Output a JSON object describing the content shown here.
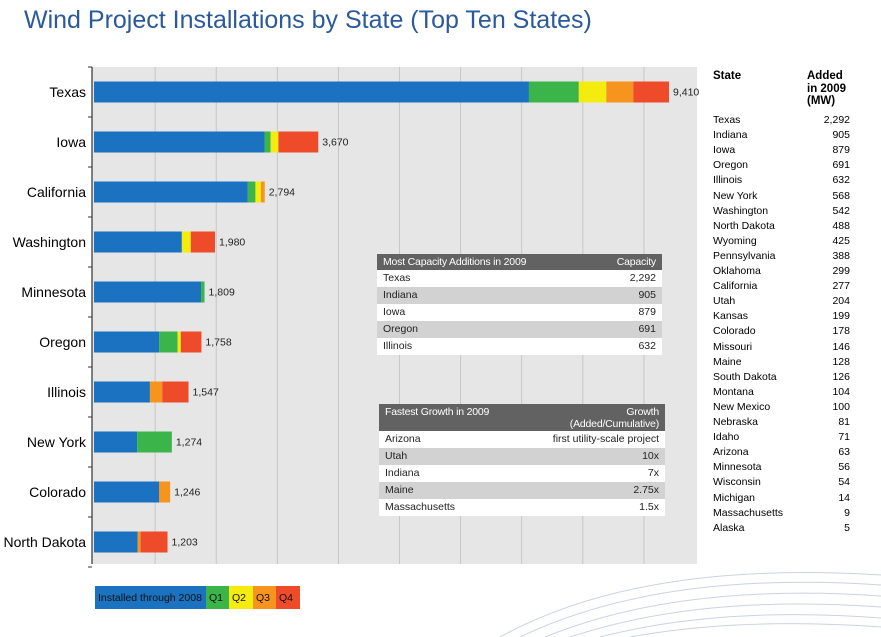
{
  "title": "Wind Project Installations by State (Top Ten States)",
  "colors": {
    "installed": "#1a72c0",
    "q1": "#3bb54a",
    "q2": "#f5ec0f",
    "q3": "#f7941e",
    "q4": "#ee4b2b",
    "title": "#2a5a9c",
    "plot_bg": "#e6e6e6"
  },
  "chart_data": {
    "type": "bar",
    "orientation": "horizontal",
    "stacked": true,
    "categories": [
      "Texas",
      "Iowa",
      "California",
      "Washington",
      "Minnesota",
      "Oregon",
      "Illinois",
      "New York",
      "Colorado",
      "North Dakota"
    ],
    "totals": [
      9410,
      3670,
      2794,
      1980,
      1809,
      1758,
      1547,
      1274,
      1246,
      1203
    ],
    "total_labels": [
      "9,410",
      "3,670",
      "2,794",
      "1,980",
      "1,809",
      "1,758",
      "1,547",
      "1,274",
      "1,246",
      "1,203"
    ],
    "series": [
      {
        "name": "Installed through 2008",
        "color_key": "installed",
        "values": [
          7118,
          2791,
          2517,
          1438,
          1752,
          1067,
          915,
          706,
          1068,
          715
        ]
      },
      {
        "name": "Q1",
        "color_key": "q1",
        "values": [
          816,
          100,
          125,
          0,
          57,
          302,
          0,
          568,
          0,
          0
        ]
      },
      {
        "name": "Q2",
        "color_key": "q2",
        "values": [
          450,
          127,
          89,
          146,
          0,
          51,
          0,
          0,
          0,
          0
        ]
      },
      {
        "name": "Q3",
        "color_key": "q3",
        "values": [
          441,
          0,
          63,
          0,
          0,
          0,
          203,
          0,
          178,
          48
        ]
      },
      {
        "name": "Q4",
        "color_key": "q4",
        "values": [
          585,
          652,
          0,
          396,
          0,
          338,
          429,
          0,
          0,
          440
        ]
      }
    ],
    "xlim": [
      0,
      10000
    ],
    "grid": true,
    "legend": "bottom-left"
  },
  "legend": {
    "installed": "Installed through 2008",
    "q1": "Q1",
    "q2": "Q2",
    "q3": "Q3",
    "q4": "Q4"
  },
  "inset_capacity": {
    "header_left": "Most Capacity Additions in 2009",
    "header_right": "Capacity",
    "rows": [
      {
        "state": "Texas",
        "value": "2,292"
      },
      {
        "state": "Indiana",
        "value": "905"
      },
      {
        "state": "Iowa",
        "value": "879"
      },
      {
        "state": "Oregon",
        "value": "691"
      },
      {
        "state": "Illinois",
        "value": "632"
      }
    ]
  },
  "inset_growth": {
    "header_left": "Fastest Growth in 2009",
    "header_right_line1": "Growth",
    "header_right_line2": "(Added/Cumulative)",
    "rows": [
      {
        "state": "Arizona",
        "value": "first utility-scale project"
      },
      {
        "state": "Utah",
        "value": "10x"
      },
      {
        "state": "Indiana",
        "value": "7x"
      },
      {
        "state": "Maine",
        "value": "2.75x"
      },
      {
        "state": "Massachusetts",
        "value": "1.5x"
      }
    ]
  },
  "state_table": {
    "header_state": "State",
    "header_added_1": "Added",
    "header_added_2": "in 2009",
    "header_added_3": "(MW)",
    "rows": [
      {
        "state": "Texas",
        "value": "2,292"
      },
      {
        "state": "Indiana",
        "value": "905"
      },
      {
        "state": "Iowa",
        "value": "879"
      },
      {
        "state": "Oregon",
        "value": "691"
      },
      {
        "state": "Illinois",
        "value": "632"
      },
      {
        "state": "New York",
        "value": "568"
      },
      {
        "state": "Washington",
        "value": "542"
      },
      {
        "state": "North Dakota",
        "value": "488"
      },
      {
        "state": "Wyoming",
        "value": "425"
      },
      {
        "state": "Pennsylvania",
        "value": "388"
      },
      {
        "state": "Oklahoma",
        "value": "299"
      },
      {
        "state": "California",
        "value": "277"
      },
      {
        "state": "Utah",
        "value": "204"
      },
      {
        "state": "Kansas",
        "value": "199"
      },
      {
        "state": "Colorado",
        "value": "178"
      },
      {
        "state": "Missouri",
        "value": "146"
      },
      {
        "state": "Maine",
        "value": "128"
      },
      {
        "state": "South Dakota",
        "value": "126"
      },
      {
        "state": "Montana",
        "value": "104"
      },
      {
        "state": "New Mexico",
        "value": "100"
      },
      {
        "state": "Nebraska",
        "value": "81"
      },
      {
        "state": "Idaho",
        "value": "71"
      },
      {
        "state": "Arizona",
        "value": "63"
      },
      {
        "state": "Minnesota",
        "value": "56"
      },
      {
        "state": "Wisconsin",
        "value": "54"
      },
      {
        "state": "Michigan",
        "value": "14"
      },
      {
        "state": "Massachusetts",
        "value": "9"
      },
      {
        "state": "Alaska",
        "value": "5"
      }
    ]
  }
}
